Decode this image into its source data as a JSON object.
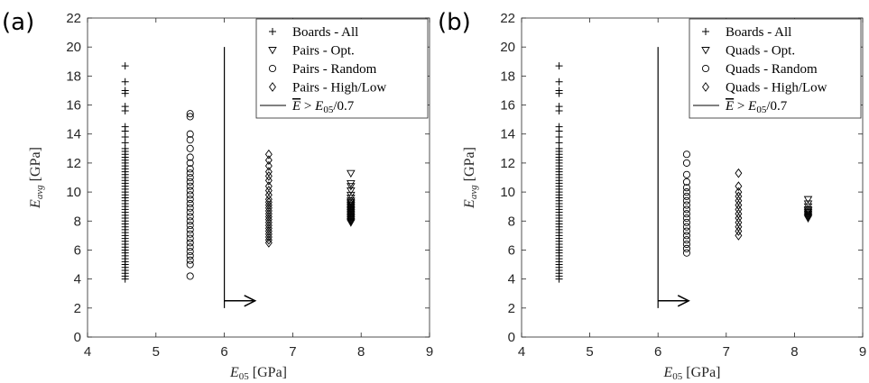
{
  "chart_data": [
    {
      "type": "scatter",
      "panel": "(a)",
      "xlim": [
        4,
        9
      ],
      "ylim": [
        0,
        22
      ],
      "x_ticks": [
        4,
        5,
        6,
        7,
        8,
        9
      ],
      "y_ticks": [
        0,
        2,
        4,
        6,
        8,
        10,
        12,
        14,
        16,
        18,
        20,
        22
      ],
      "xlabel": {
        "symbol": "E",
        "sub": "05",
        "unit": " [GPa]"
      },
      "ylabel": {
        "symbol": "E",
        "sub": "avg",
        "unit": " [GPa]"
      },
      "grid": false,
      "legend_position": "top-right",
      "series": [
        {
          "name": "Boards - All",
          "marker": "plus",
          "x": 4.55,
          "values": [
            4.0,
            4.2,
            4.4,
            4.6,
            4.8,
            5.0,
            5.2,
            5.4,
            5.6,
            5.8,
            6.0,
            6.2,
            6.4,
            6.6,
            6.8,
            7.0,
            7.2,
            7.4,
            7.6,
            7.8,
            8.0,
            8.2,
            8.4,
            8.6,
            8.8,
            9.0,
            9.2,
            9.4,
            9.6,
            9.8,
            10.0,
            10.2,
            10.4,
            10.6,
            10.8,
            11.0,
            11.2,
            11.4,
            11.6,
            11.8,
            12.0,
            12.2,
            12.4,
            12.6,
            12.8,
            13.0,
            13.4,
            13.8,
            14.2,
            14.5,
            15.6,
            15.9,
            16.8,
            17.0,
            17.6,
            18.7
          ]
        },
        {
          "name": "Pairs - Opt.",
          "marker": "triangle-down",
          "x": 7.85,
          "values": [
            7.9,
            8.0,
            8.1,
            8.2,
            8.3,
            8.4,
            8.5,
            8.6,
            8.7,
            8.8,
            8.9,
            9.0,
            9.1,
            9.2,
            9.3,
            9.4,
            9.6,
            9.8,
            10.1,
            10.4,
            10.6,
            11.3
          ]
        },
        {
          "name": "Pairs - Random",
          "marker": "circle",
          "x": 5.5,
          "values": [
            4.2,
            5.0,
            5.3,
            5.6,
            5.9,
            6.2,
            6.5,
            6.8,
            7.1,
            7.4,
            7.7,
            8.0,
            8.3,
            8.6,
            8.9,
            9.2,
            9.5,
            9.8,
            10.1,
            10.4,
            10.7,
            11.0,
            11.3,
            11.6,
            12.0,
            12.4,
            13.0,
            13.6,
            14.0,
            15.2,
            15.4
          ]
        },
        {
          "name": "Pairs - High/Low",
          "marker": "diamond",
          "x": 6.65,
          "values": [
            6.5,
            6.7,
            6.9,
            7.1,
            7.3,
            7.5,
            7.7,
            7.9,
            8.1,
            8.3,
            8.5,
            8.7,
            8.9,
            9.1,
            9.3,
            9.5,
            9.8,
            10.1,
            10.4,
            10.8,
            11.1,
            11.4,
            11.8,
            12.2,
            12.6
          ]
        }
      ],
      "threshold": {
        "name": "E > E05/0.7",
        "legend": {
          "overline": "E",
          "rel": " > ",
          "symbol": "E",
          "sub": "05",
          "tail": "/0.7"
        },
        "x": 6.0,
        "y_range": [
          2.0,
          20.0
        ],
        "arrow": {
          "y": 2.5,
          "x_end": 6.45
        }
      }
    },
    {
      "type": "scatter",
      "panel": "(b)",
      "xlim": [
        4,
        9
      ],
      "ylim": [
        0,
        22
      ],
      "x_ticks": [
        4,
        5,
        6,
        7,
        8,
        9
      ],
      "y_ticks": [
        0,
        2,
        4,
        6,
        8,
        10,
        12,
        14,
        16,
        18,
        20,
        22
      ],
      "xlabel": {
        "symbol": "E",
        "sub": "05",
        "unit": " [GPa]"
      },
      "ylabel": {
        "symbol": "E",
        "sub": "avg",
        "unit": " [GPa]"
      },
      "grid": false,
      "legend_position": "top-right",
      "series": [
        {
          "name": "Boards - All",
          "marker": "plus",
          "x": 4.55,
          "values": [
            4.0,
            4.2,
            4.4,
            4.6,
            4.8,
            5.0,
            5.2,
            5.4,
            5.6,
            5.8,
            6.0,
            6.2,
            6.4,
            6.6,
            6.8,
            7.0,
            7.2,
            7.4,
            7.6,
            7.8,
            8.0,
            8.2,
            8.4,
            8.6,
            8.8,
            9.0,
            9.2,
            9.4,
            9.6,
            9.8,
            10.0,
            10.2,
            10.4,
            10.6,
            10.8,
            11.0,
            11.2,
            11.4,
            11.6,
            11.8,
            12.0,
            12.2,
            12.4,
            12.6,
            12.8,
            13.0,
            13.4,
            13.8,
            14.2,
            14.5,
            15.6,
            15.9,
            16.8,
            17.0,
            17.6,
            18.7
          ]
        },
        {
          "name": "Quads - Opt.",
          "marker": "triangle-down",
          "x": 8.2,
          "values": [
            8.2,
            8.3,
            8.4,
            8.5,
            8.6,
            8.7,
            8.8,
            9.0,
            9.2,
            9.5
          ]
        },
        {
          "name": "Quads - Random",
          "marker": "circle",
          "x": 6.42,
          "values": [
            5.8,
            6.1,
            6.4,
            6.7,
            7.0,
            7.3,
            7.6,
            7.9,
            8.2,
            8.5,
            8.8,
            9.1,
            9.4,
            9.7,
            10.0,
            10.3,
            10.7,
            11.2,
            12.0,
            12.6
          ]
        },
        {
          "name": "Quads - High/Low",
          "marker": "diamond",
          "x": 7.18,
          "values": [
            7.0,
            7.3,
            7.6,
            7.9,
            8.2,
            8.5,
            8.8,
            9.1,
            9.4,
            9.7,
            10.0,
            10.4,
            11.3
          ]
        }
      ],
      "threshold": {
        "name": "E > E05/0.7",
        "legend": {
          "overline": "E",
          "rel": " > ",
          "symbol": "E",
          "sub": "05",
          "tail": "/0.7"
        },
        "x": 6.0,
        "y_range": [
          2.0,
          20.0
        ],
        "arrow": {
          "y": 2.5,
          "x_end": 6.45
        }
      }
    }
  ],
  "colors": {
    "marker": "#000000",
    "axis": "#262626",
    "background": "#ffffff"
  }
}
